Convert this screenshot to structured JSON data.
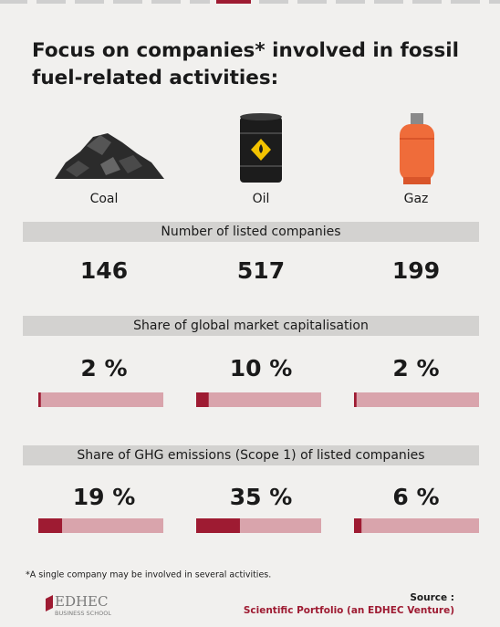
{
  "header": {
    "title_lines": [
      "Focus on companies* involved in fossil",
      "fuel-related activities:"
    ]
  },
  "items": [
    "Coal",
    "Oil",
    "Gaz"
  ],
  "sections": [
    {
      "header": "Number of listed companies",
      "values": [
        146,
        517,
        199
      ]
    },
    {
      "header": "Share of global market capitalisation",
      "values": [
        2,
        10,
        2
      ],
      "value_labels": [
        "2 %",
        "10 %",
        "2 %"
      ],
      "xlim": [
        0,
        100
      ],
      "bar_color": "#9e1b32",
      "track_color": "#d9a4ac"
    },
    {
      "header": "Share of GHG emissions (Scope 1) of listed companies",
      "values": [
        19,
        35,
        6
      ],
      "value_labels": [
        "19 %",
        "35 %",
        "6 %"
      ],
      "xlim": [
        0,
        100
      ],
      "bar_color": "#9e1b32",
      "track_color": "#d9a4ac"
    }
  ],
  "footnote": "*A single company may be involved in several activities.",
  "logo": {
    "name": "EDHEC",
    "sub": "BUSINESS SCHOOL"
  },
  "source": {
    "label": "Source :",
    "text": "Scientific Portfolio (an EDHEC Venture)"
  }
}
